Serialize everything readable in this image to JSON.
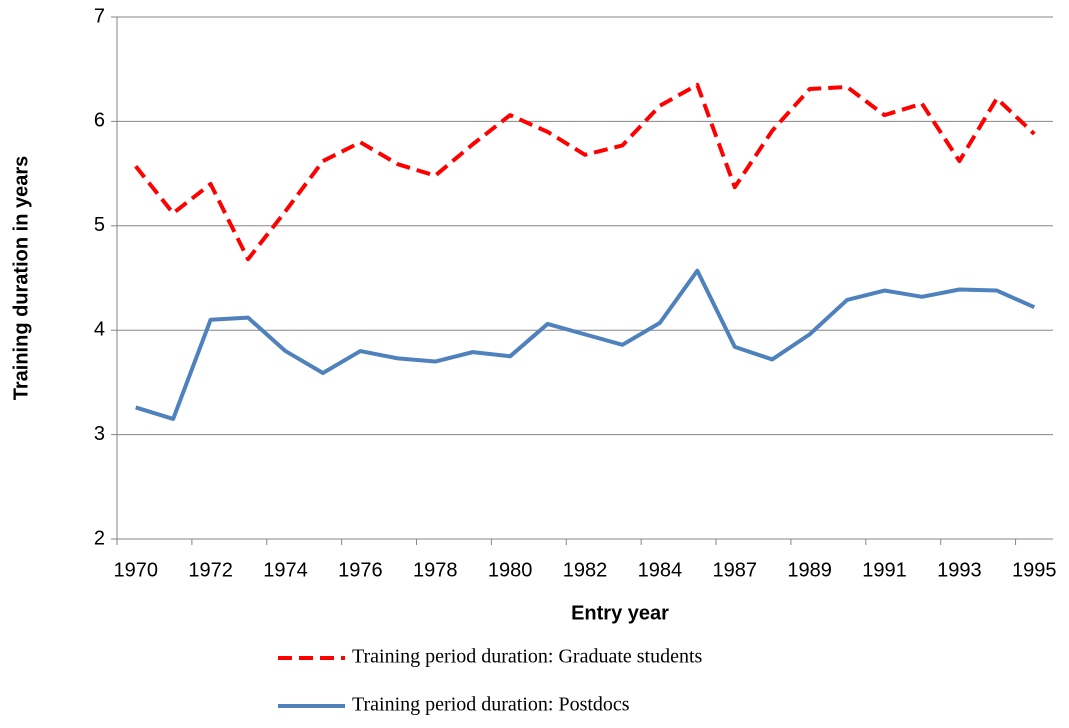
{
  "chart_data": {
    "type": "line",
    "x_label": "Entry year",
    "y_label": "Training duration in years",
    "categories": [
      "1970",
      null,
      "1972",
      null,
      "1974",
      null,
      "1976",
      null,
      "1978",
      null,
      "1980",
      null,
      "1982",
      null,
      "1984",
      null,
      "1987",
      null,
      "1989",
      null,
      "1991",
      null,
      "1993",
      null,
      "1995"
    ],
    "series": [
      {
        "name": "Training period duration: Graduate students",
        "color": "#ff0000",
        "dashed": true,
        "values": [
          5.57,
          5.12,
          5.4,
          4.68,
          5.14,
          5.62,
          5.8,
          5.59,
          5.48,
          5.78,
          6.06,
          5.9,
          5.68,
          5.77,
          6.15,
          6.35,
          5.37,
          5.91,
          6.31,
          6.33,
          6.06,
          6.17,
          5.62,
          6.22,
          5.88
        ]
      },
      {
        "name": "Training period duration: Postdocs",
        "color": "#4f81bd",
        "dashed": false,
        "values": [
          3.26,
          3.15,
          4.1,
          4.12,
          3.8,
          3.59,
          3.8,
          3.73,
          3.7,
          3.79,
          3.75,
          4.06,
          3.96,
          3.86,
          4.07,
          4.57,
          3.84,
          3.72,
          3.96,
          4.29,
          4.38,
          4.32,
          4.39,
          4.38,
          4.22
        ]
      }
    ],
    "ylim": [
      2,
      7
    ],
    "yticks": [
      2,
      3,
      4,
      5,
      6,
      7
    ],
    "grid": true
  }
}
